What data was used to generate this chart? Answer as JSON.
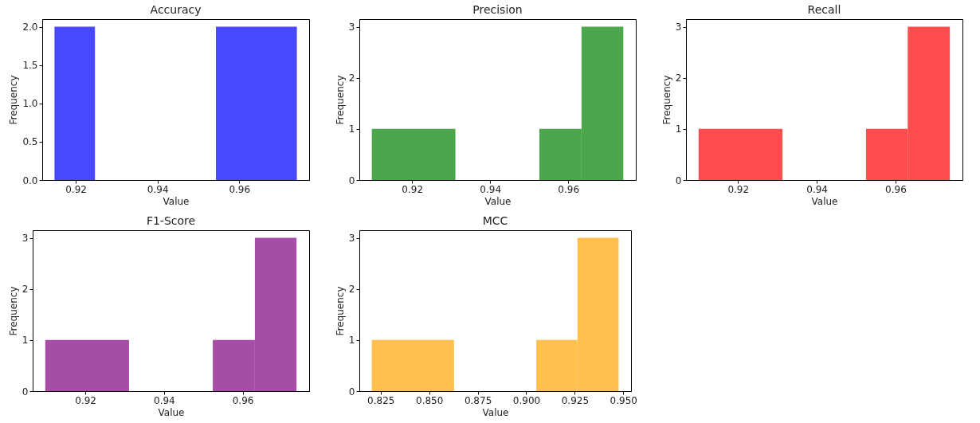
{
  "chart_data": [
    {
      "type": "histogram",
      "title": "Accuracy",
      "xlabel": "Value",
      "ylabel": "Frequency",
      "color": "#4848fe",
      "bins": [
        0.9148,
        0.9247,
        0.9543,
        0.9741
      ],
      "values": [
        2,
        0,
        2
      ],
      "xlim": [
        0.9118,
        0.9771
      ],
      "xticks": [
        0.92,
        0.94,
        0.96
      ],
      "ylim": [
        0,
        2.1
      ],
      "yticks": [
        {
          "value": 0,
          "label": "0.0"
        },
        {
          "value": 0.5,
          "label": "0.5"
        },
        {
          "value": 1,
          "label": "1.0"
        },
        {
          "value": 1.5,
          "label": "1.5"
        },
        {
          "value": 2,
          "label": "2.0"
        }
      ],
      "grid": false
    },
    {
      "type": "histogram",
      "title": "Precision",
      "xlabel": "Value",
      "ylabel": "Frequency",
      "color": "#4ca64c",
      "bins": [
        0.9097,
        0.9311,
        0.9526,
        0.9634,
        0.9741
      ],
      "values": [
        1,
        0,
        1,
        3
      ],
      "xlim": [
        0.9065,
        0.9773
      ],
      "xticks": [
        0.92,
        0.94,
        0.96
      ],
      "ylim": [
        0,
        3.15
      ],
      "yticks": [
        0,
        1,
        2,
        3
      ],
      "grid": false
    },
    {
      "type": "histogram",
      "title": "Recall",
      "xlabel": "Value",
      "ylabel": "Frequency",
      "color": "#ff4d4d",
      "bins": [
        0.91,
        0.9313,
        0.9525,
        0.9631,
        0.9738
      ],
      "values": [
        1,
        0,
        1,
        3
      ],
      "xlim": [
        0.9068,
        0.977
      ],
      "xticks": [
        0.92,
        0.94,
        0.96
      ],
      "ylim": [
        0,
        3.15
      ],
      "yticks": [
        0,
        1,
        2,
        3
      ],
      "grid": false
    },
    {
      "type": "histogram",
      "title": "F1-Score",
      "xlabel": "Value",
      "ylabel": "Frequency",
      "color": "#a64da6",
      "bins": [
        0.9098,
        0.9311,
        0.9524,
        0.9631,
        0.9737
      ],
      "values": [
        1,
        0,
        1,
        3
      ],
      "xlim": [
        0.9066,
        0.9769
      ],
      "xticks": [
        0.92,
        0.94,
        0.96
      ],
      "ylim": [
        0,
        3.15
      ],
      "yticks": [
        0,
        1,
        2,
        3
      ],
      "grid": false
    },
    {
      "type": "histogram",
      "title": "MCC",
      "xlabel": "Value",
      "ylabel": "Frequency",
      "color": "#ffc04d",
      "bins": [
        0.8204,
        0.8628,
        0.9052,
        0.9264,
        0.9476
      ],
      "values": [
        1,
        0,
        1,
        3
      ],
      "xlim": [
        0.814,
        0.954
      ],
      "xticks": [
        0.825,
        {
          "value": 0.85,
          "label": "0.850"
        },
        0.875,
        {
          "value": 0.9,
          "label": "0.900"
        },
        0.925,
        {
          "value": 0.95,
          "label": "0.950"
        }
      ],
      "ylim": [
        0,
        3.15
      ],
      "yticks": [
        0,
        1,
        2,
        3
      ],
      "grid": false
    }
  ]
}
